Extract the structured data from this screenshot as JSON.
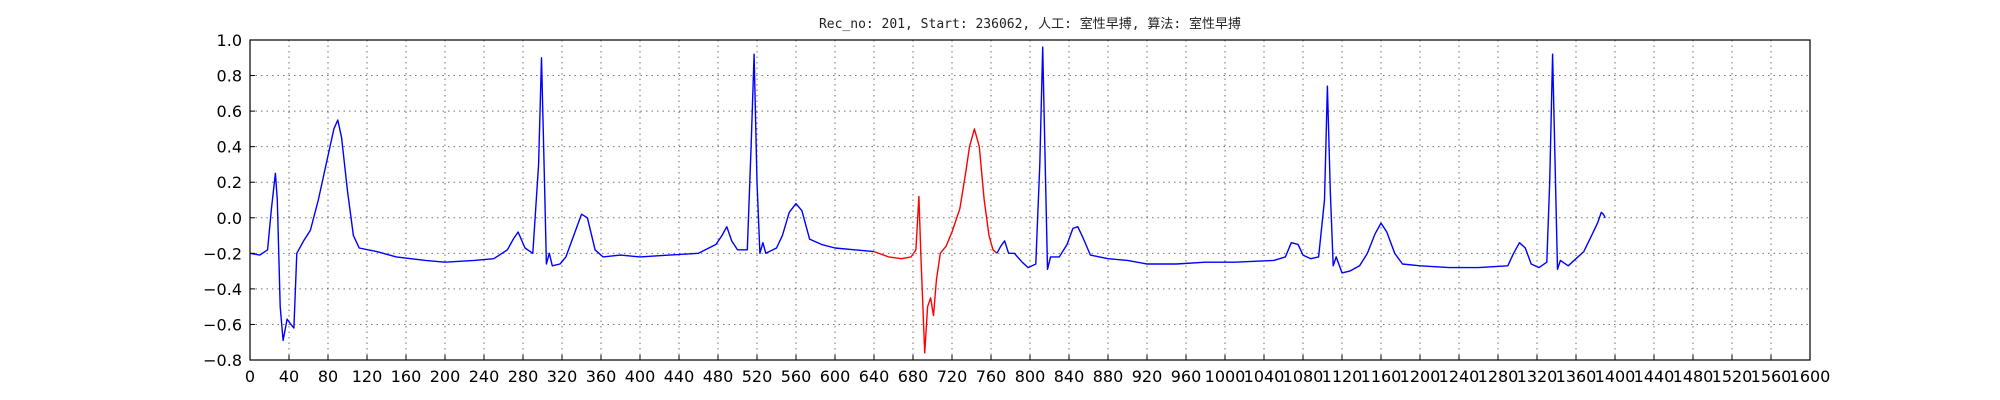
{
  "chart_data": {
    "type": "line",
    "title": "Rec_no: 201, Start: 236062, 人工: 室性早搏, 算法: 室性早搏",
    "xlabel": "",
    "ylabel": "",
    "xlim": [
      0,
      1600
    ],
    "ylim": [
      -0.8,
      1.0
    ],
    "grid": true,
    "yticks": [
      1.0,
      0.8,
      0.6,
      0.4,
      0.2,
      0.0,
      -0.2,
      -0.4,
      -0.6,
      -0.8
    ],
    "ytick_labels": [
      "1.0",
      "0.8",
      "0.6",
      "0.4",
      "0.2",
      "0.0",
      "−0.2",
      "−0.4",
      "−0.6",
      "−0.8"
    ],
    "xticks": [
      0,
      40,
      80,
      120,
      160,
      200,
      240,
      280,
      320,
      360,
      400,
      440,
      480,
      520,
      560,
      600,
      640,
      680,
      720,
      760,
      800,
      840,
      880,
      920,
      960,
      1000,
      1040,
      1080,
      1120,
      1160,
      1200,
      1240,
      1280,
      1320,
      1360,
      1400,
      1440,
      1480,
      1520,
      1560,
      1600
    ],
    "xtick_labels": [
      "0",
      "40",
      "80",
      "120",
      "160",
      "200",
      "240",
      "280",
      "320",
      "360",
      "400",
      "440",
      "480",
      "520",
      "560",
      "600",
      "640",
      "680",
      "720",
      "760",
      "800",
      "840",
      "880",
      "920",
      "960",
      "1000",
      "1040",
      "1080",
      "1120",
      "1160",
      "1200",
      "1240",
      "1280",
      "1320",
      "1360",
      "1400",
      "1440",
      "1480",
      "1520",
      "1560",
      "1600"
    ],
    "series": [
      {
        "color": "#0000ff",
        "points": [
          [
            0,
            -0.2
          ],
          [
            10,
            -0.21
          ],
          [
            18,
            -0.18
          ],
          [
            22,
            0.05
          ],
          [
            26,
            0.25
          ],
          [
            28,
            0.1
          ],
          [
            31,
            -0.5
          ],
          [
            34,
            -0.69
          ],
          [
            38,
            -0.57
          ],
          [
            42,
            -0.6
          ],
          [
            45,
            -0.62
          ],
          [
            48,
            -0.2
          ],
          [
            55,
            -0.13
          ],
          [
            62,
            -0.07
          ],
          [
            70,
            0.1
          ],
          [
            78,
            0.3
          ],
          [
            86,
            0.5
          ],
          [
            90,
            0.55
          ],
          [
            94,
            0.45
          ],
          [
            100,
            0.15
          ],
          [
            106,
            -0.1
          ],
          [
            112,
            -0.17
          ],
          [
            130,
            -0.19
          ],
          [
            150,
            -0.22
          ],
          [
            180,
            -0.24
          ],
          [
            200,
            -0.25
          ],
          [
            230,
            -0.24
          ],
          [
            250,
            -0.23
          ],
          [
            264,
            -0.18
          ],
          [
            270,
            -0.12
          ],
          [
            275,
            -0.08
          ],
          [
            282,
            -0.17
          ],
          [
            290,
            -0.2
          ],
          [
            296,
            0.3
          ],
          [
            299,
            0.9
          ],
          [
            302,
            0.2
          ],
          [
            304,
            -0.26
          ],
          [
            307,
            -0.2
          ],
          [
            310,
            -0.27
          ],
          [
            318,
            -0.26
          ],
          [
            324,
            -0.22
          ],
          [
            332,
            -0.1
          ],
          [
            340,
            0.02
          ],
          [
            346,
            0.0
          ],
          [
            354,
            -0.18
          ],
          [
            362,
            -0.22
          ],
          [
            380,
            -0.21
          ],
          [
            400,
            -0.22
          ],
          [
            430,
            -0.21
          ],
          [
            460,
            -0.2
          ],
          [
            478,
            -0.15
          ],
          [
            484,
            -0.1
          ],
          [
            489,
            -0.05
          ],
          [
            494,
            -0.13
          ],
          [
            500,
            -0.18
          ],
          [
            510,
            -0.18
          ],
          [
            514,
            0.4
          ],
          [
            517,
            0.92
          ],
          [
            520,
            0.2
          ],
          [
            523,
            -0.2
          ],
          [
            526,
            -0.14
          ],
          [
            529,
            -0.2
          ],
          [
            540,
            -0.17
          ],
          [
            546,
            -0.1
          ],
          [
            553,
            0.03
          ],
          [
            560,
            0.08
          ],
          [
            566,
            0.04
          ],
          [
            574,
            -0.12
          ],
          [
            586,
            -0.15
          ],
          [
            600,
            -0.17
          ],
          [
            620,
            -0.18
          ],
          [
            640,
            -0.19
          ]
        ]
      },
      {
        "color": "#ff0000",
        "points": [
          [
            640,
            -0.19
          ],
          [
            655,
            -0.22
          ],
          [
            668,
            -0.23
          ],
          [
            678,
            -0.22
          ],
          [
            683,
            -0.18
          ],
          [
            686,
            0.12
          ],
          [
            688,
            -0.2
          ],
          [
            692,
            -0.76
          ],
          [
            695,
            -0.5
          ],
          [
            698,
            -0.45
          ],
          [
            701,
            -0.55
          ],
          [
            704,
            -0.35
          ],
          [
            708,
            -0.2
          ],
          [
            714,
            -0.16
          ],
          [
            720,
            -0.08
          ],
          [
            728,
            0.05
          ],
          [
            734,
            0.25
          ],
          [
            738,
            0.4
          ],
          [
            743,
            0.5
          ],
          [
            748,
            0.4
          ],
          [
            753,
            0.1
          ],
          [
            758,
            -0.1
          ],
          [
            762,
            -0.18
          ],
          [
            766,
            -0.2
          ]
        ]
      },
      {
        "color": "#0000ff",
        "points": [
          [
            766,
            -0.2
          ],
          [
            770,
            -0.16
          ],
          [
            774,
            -0.13
          ],
          [
            778,
            -0.2
          ],
          [
            784,
            -0.2
          ],
          [
            792,
            -0.25
          ],
          [
            798,
            -0.28
          ],
          [
            806,
            -0.26
          ],
          [
            810,
            0.3
          ],
          [
            813,
            0.96
          ],
          [
            816,
            0.2
          ],
          [
            818,
            -0.29
          ],
          [
            821,
            -0.22
          ],
          [
            830,
            -0.22
          ],
          [
            838,
            -0.15
          ],
          [
            844,
            -0.06
          ],
          [
            849,
            -0.05
          ],
          [
            855,
            -0.12
          ],
          [
            862,
            -0.21
          ],
          [
            880,
            -0.23
          ],
          [
            900,
            -0.24
          ],
          [
            920,
            -0.26
          ],
          [
            950,
            -0.26
          ],
          [
            980,
            -0.25
          ],
          [
            1010,
            -0.25
          ],
          [
            1050,
            -0.24
          ],
          [
            1062,
            -0.22
          ],
          [
            1068,
            -0.14
          ],
          [
            1075,
            -0.15
          ],
          [
            1080,
            -0.21
          ],
          [
            1088,
            -0.23
          ],
          [
            1096,
            -0.22
          ],
          [
            1102,
            0.1
          ],
          [
            1105,
            0.74
          ],
          [
            1108,
            0.15
          ],
          [
            1111,
            -0.27
          ],
          [
            1114,
            -0.22
          ],
          [
            1120,
            -0.31
          ],
          [
            1128,
            -0.3
          ],
          [
            1138,
            -0.27
          ],
          [
            1146,
            -0.2
          ],
          [
            1154,
            -0.09
          ],
          [
            1160,
            -0.03
          ],
          [
            1166,
            -0.08
          ],
          [
            1174,
            -0.2
          ],
          [
            1182,
            -0.26
          ],
          [
            1200,
            -0.27
          ],
          [
            1230,
            -0.28
          ],
          [
            1260,
            -0.28
          ],
          [
            1290,
            -0.27
          ],
          [
            1296,
            -0.2
          ],
          [
            1302,
            -0.14
          ],
          [
            1308,
            -0.17
          ],
          [
            1314,
            -0.26
          ],
          [
            1322,
            -0.28
          ],
          [
            1330,
            -0.25
          ],
          [
            1333,
            0.2
          ],
          [
            1336,
            0.92
          ],
          [
            1339,
            0.2
          ],
          [
            1341,
            -0.29
          ],
          [
            1344,
            -0.24
          ],
          [
            1352,
            -0.27
          ],
          [
            1360,
            -0.23
          ],
          [
            1368,
            -0.19
          ],
          [
            1376,
            -0.1
          ],
          [
            1382,
            -0.03
          ],
          [
            1386,
            0.03
          ],
          [
            1388,
            0.02
          ],
          [
            1390,
            0.0
          ]
        ]
      }
    ]
  }
}
